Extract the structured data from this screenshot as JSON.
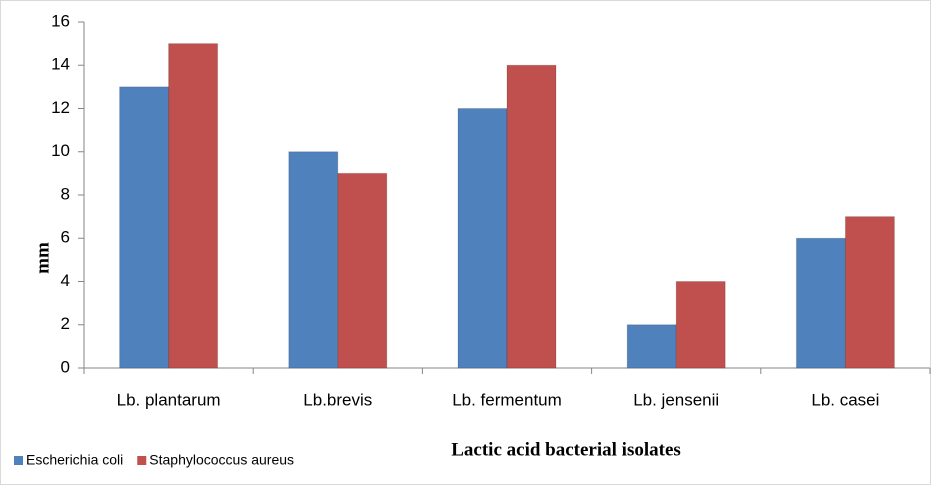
{
  "chart_data": {
    "type": "bar",
    "categories": [
      "Lb. plantarum",
      "Lb.brevis",
      "Lb. fermentum",
      "Lb. jensenii",
      "Lb. casei"
    ],
    "series": [
      {
        "name": "Escherichia coli",
        "color": "#4f81bd",
        "values": [
          13,
          10,
          12,
          2,
          6
        ]
      },
      {
        "name": "Staphylococcus aureus",
        "color": "#c0504d",
        "values": [
          15,
          9,
          14,
          4,
          7
        ]
      }
    ],
    "ylim": [
      0,
      16
    ],
    "yticks": [
      0,
      2,
      4,
      6,
      8,
      10,
      12,
      14,
      16
    ],
    "x_label": "Lactic acid bacterial isolates",
    "y_label": "mm",
    "grid": false,
    "legend": "bottom-left"
  }
}
